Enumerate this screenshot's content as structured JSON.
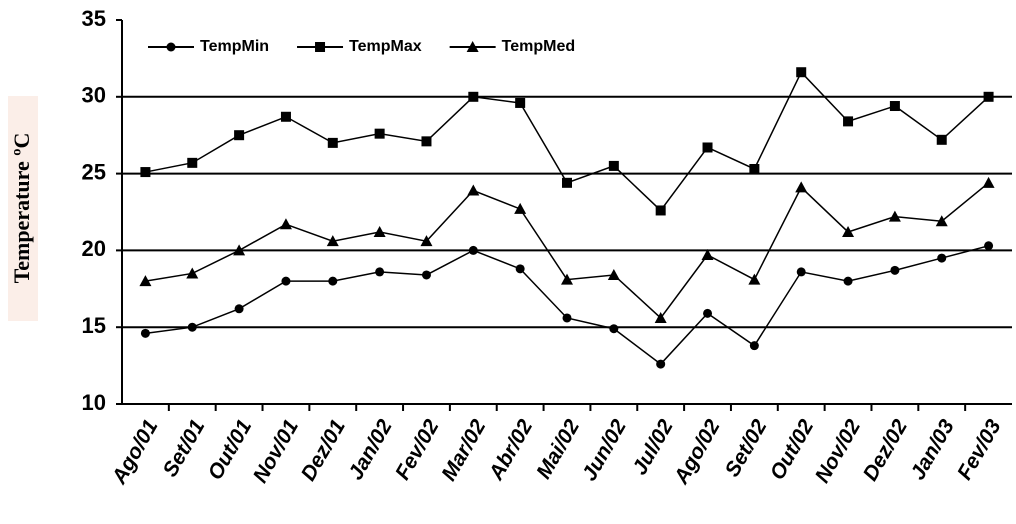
{
  "chart_data": {
    "type": "line",
    "y_label": "Temperature ºC",
    "categories": [
      "Ago/01",
      "Set/01",
      "Out/01",
      "Nov/01",
      "Dez/01",
      "Jan/02",
      "Fev/02",
      "Mar/02",
      "Abr/02",
      "Mai/02",
      "Jun/02",
      "Jul/02",
      "Ago/02",
      "Set/02",
      "Out/02",
      "Nov/02",
      "Dez/02",
      "Jan/03",
      "Fev/03"
    ],
    "series": [
      {
        "name": "TempMin",
        "color": "#000000",
        "marker": "circle",
        "values": [
          14.6,
          15.0,
          16.2,
          18.0,
          18.0,
          18.6,
          18.4,
          20.0,
          18.8,
          15.6,
          14.9,
          12.6,
          15.9,
          13.8,
          18.6,
          18.0,
          18.7,
          19.5,
          20.3
        ]
      },
      {
        "name": "TempMax",
        "color": "#000000",
        "marker": "square",
        "values": [
          25.1,
          25.7,
          27.5,
          28.7,
          27.0,
          27.6,
          27.1,
          30.0,
          29.6,
          24.4,
          25.5,
          22.6,
          26.7,
          25.3,
          31.6,
          28.4,
          29.4,
          27.2,
          30.0
        ]
      },
      {
        "name": "TempMed",
        "color": "#000000",
        "marker": "triangle",
        "values": [
          18.0,
          18.5,
          20.0,
          21.7,
          20.6,
          21.2,
          20.6,
          23.9,
          22.7,
          18.1,
          18.4,
          15.6,
          19.7,
          18.1,
          24.1,
          21.2,
          22.2,
          21.9,
          24.4
        ]
      }
    ],
    "ylim": [
      10,
      35
    ],
    "yticks": [
      10,
      15,
      20,
      25,
      30,
      35
    ],
    "grid": true,
    "legend": "top-left"
  }
}
